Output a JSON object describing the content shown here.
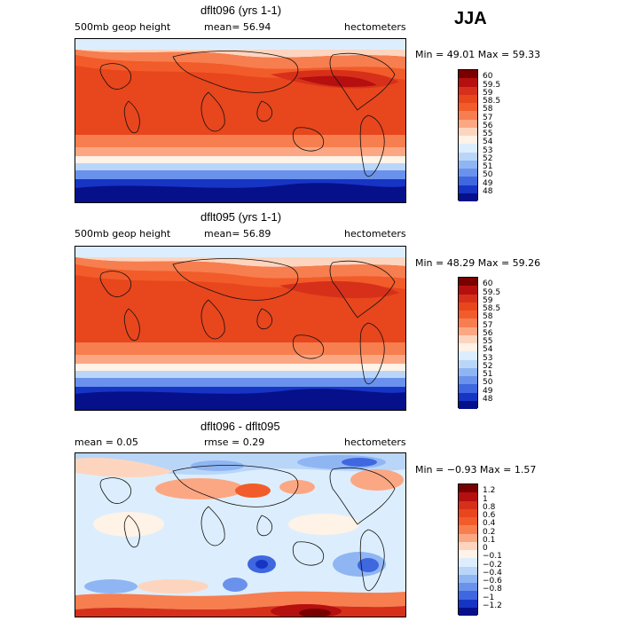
{
  "season": "JJA",
  "panels": [
    {
      "title": "dflt096 (yrs 1-1)",
      "left_label": "500mb geop height",
      "center_label": "mean=  56.94",
      "right_label": "hectometers",
      "minmax": "Min =  49.01 Max =  59.33",
      "levels": [
        "60",
        "59.5",
        "59",
        "58.5",
        "58",
        "57",
        "56",
        "55",
        "54",
        "53",
        "52",
        "51",
        "50",
        "49",
        "48"
      ],
      "colors": [
        "#7a0000",
        "#b50f0f",
        "#d7301a",
        "#e8461d",
        "#f25c2a",
        "#f77e4f",
        "#fca783",
        "#fdd5bf",
        "#fff2e6",
        "#dceefd",
        "#b9d6f9",
        "#8fb6f3",
        "#6a92ec",
        "#3f67e0",
        "#1735c4",
        "#06108a"
      ]
    },
    {
      "title": "dflt095 (yrs 1-1)",
      "left_label": "500mb geop height",
      "center_label": "mean=  56.89",
      "right_label": "hectometers",
      "minmax": "Min =  48.29 Max =  59.26",
      "levels": [
        "60",
        "59.5",
        "59",
        "58.5",
        "58",
        "57",
        "56",
        "55",
        "54",
        "53",
        "52",
        "51",
        "50",
        "49",
        "48"
      ],
      "colors": [
        "#7a0000",
        "#b50f0f",
        "#d7301a",
        "#e8461d",
        "#f25c2a",
        "#f77e4f",
        "#fca783",
        "#fdd5bf",
        "#fff2e6",
        "#dceefd",
        "#b9d6f9",
        "#8fb6f3",
        "#6a92ec",
        "#3f67e0",
        "#1735c4",
        "#06108a"
      ]
    },
    {
      "title": "dflt096 - dflt095",
      "left_label": "mean =   0.05",
      "center_label": "rmse =   0.29",
      "right_label": "hectometers",
      "minmax": "Min = −0.93 Max =   1.57",
      "levels": [
        "1.2",
        "1",
        "0.8",
        "0.6",
        "0.4",
        "0.2",
        "0.1",
        "0",
        "−0.1",
        "−0.2",
        "−0.4",
        "−0.6",
        "−0.8",
        "−1",
        "−1.2"
      ],
      "colors": [
        "#7a0000",
        "#b50f0f",
        "#d7301a",
        "#e8461d",
        "#f25c2a",
        "#f77e4f",
        "#fca783",
        "#fdd5bf",
        "#fff2e6",
        "#dceefd",
        "#b9d6f9",
        "#8fb6f3",
        "#6a92ec",
        "#3f67e0",
        "#1735c4",
        "#06108a"
      ]
    }
  ]
}
